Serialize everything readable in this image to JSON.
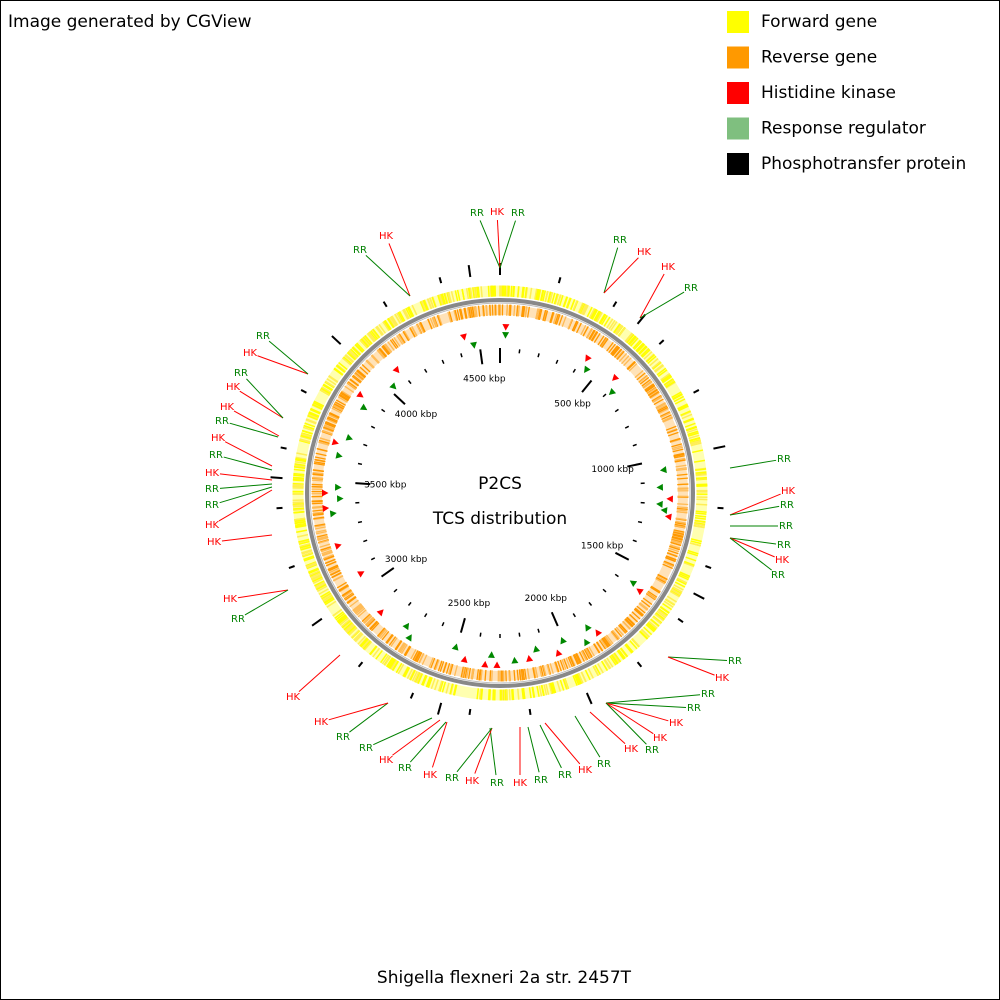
{
  "header": {
    "title": "Image generated by CGView"
  },
  "legend": [
    {
      "label": "Forward gene",
      "color": "#ffff00"
    },
    {
      "label": "Reverse gene",
      "color": "#ff9900"
    },
    {
      "label": "Histidine kinase",
      "color": "#ff0000"
    },
    {
      "label": "Response regulator",
      "color": "#7fbf7f"
    },
    {
      "label": "Phosphotransfer protein",
      "color": "#000000"
    }
  ],
  "center": {
    "title": "P2CS",
    "subtitle": "TCS distribution"
  },
  "scale_labels": [
    "500 kbp",
    "1000 kbp",
    "1500 kbp",
    "2000 kbp",
    "2500 kbp",
    "3000 kbp",
    "3500 kbp",
    "4000 kbp",
    "4500 kbp"
  ],
  "features": [
    {
      "label": "RR",
      "color": "#008000"
    },
    {
      "label": "HK",
      "color": "#ff0000"
    },
    {
      "label": "RR",
      "color": "#008000"
    },
    {
      "label": "RR",
      "color": "#008000"
    },
    {
      "label": "HK",
      "color": "#ff0000"
    },
    {
      "label": "HK",
      "color": "#ff0000"
    },
    {
      "label": "RR",
      "color": "#008000"
    },
    {
      "label": "RR",
      "color": "#008000"
    },
    {
      "label": "HK",
      "color": "#ff0000"
    },
    {
      "label": "RR",
      "color": "#008000"
    },
    {
      "label": "RR",
      "color": "#008000"
    },
    {
      "label": "RR",
      "color": "#008000"
    },
    {
      "label": "HK",
      "color": "#ff0000"
    },
    {
      "label": "RR",
      "color": "#008000"
    },
    {
      "label": "RR",
      "color": "#008000"
    },
    {
      "label": "HK",
      "color": "#ff0000"
    },
    {
      "label": "RR",
      "color": "#008000"
    },
    {
      "label": "RR",
      "color": "#008000"
    },
    {
      "label": "HK",
      "color": "#ff0000"
    },
    {
      "label": "HK",
      "color": "#ff0000"
    },
    {
      "label": "RR",
      "color": "#008000"
    },
    {
      "label": "HK",
      "color": "#ff0000"
    },
    {
      "label": "RR",
      "color": "#008000"
    },
    {
      "label": "HK",
      "color": "#ff0000"
    },
    {
      "label": "RR",
      "color": "#008000"
    },
    {
      "label": "RR",
      "color": "#008000"
    },
    {
      "label": "HK",
      "color": "#ff0000"
    },
    {
      "label": "RR",
      "color": "#008000"
    },
    {
      "label": "HK",
      "color": "#ff0000"
    },
    {
      "label": "RR",
      "color": "#008000"
    },
    {
      "label": "HK",
      "color": "#ff0000"
    },
    {
      "label": "RR",
      "color": "#008000"
    },
    {
      "label": "HK",
      "color": "#ff0000"
    },
    {
      "label": "RR",
      "color": "#008000"
    },
    {
      "label": "RR",
      "color": "#008000"
    },
    {
      "label": "HK",
      "color": "#ff0000"
    },
    {
      "label": "HK",
      "color": "#ff0000"
    },
    {
      "label": "HK",
      "color": "#ff0000"
    },
    {
      "label": "RR",
      "color": "#008000"
    },
    {
      "label": "HK",
      "color": "#ff0000"
    },
    {
      "label": "HK",
      "color": "#ff0000"
    },
    {
      "label": "RR",
      "color": "#008000"
    },
    {
      "label": "RR",
      "color": "#008000"
    },
    {
      "label": "HK",
      "color": "#ff0000"
    },
    {
      "label": "RR",
      "color": "#008000"
    },
    {
      "label": "HK",
      "color": "#ff0000"
    },
    {
      "label": "RR",
      "color": "#008000"
    },
    {
      "label": "HK",
      "color": "#ff0000"
    },
    {
      "label": "HK",
      "color": "#ff0000"
    },
    {
      "label": "RR",
      "color": "#008000"
    },
    {
      "label": "HK",
      "color": "#ff0000"
    },
    {
      "label": "RR",
      "color": "#008000"
    },
    {
      "label": "HK",
      "color": "#ff0000"
    },
    {
      "label": "RR",
      "color": "#008000"
    }
  ],
  "footer": "Shigella flexneri 2a str. 2457T"
}
